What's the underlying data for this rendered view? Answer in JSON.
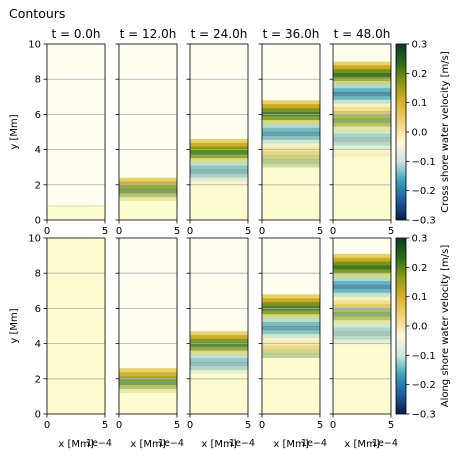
{
  "figure": {
    "title": "Contours",
    "time_prefix": "t = ",
    "time_unit": "h",
    "times": [
      "0.0",
      "12.0",
      "24.0",
      "36.0",
      "48.0"
    ],
    "x_label": "x [Mm]",
    "x_multiplier": "1e−4",
    "y_label": "y [Mm]"
  },
  "colorscale": {
    "name": "gist_earth_r-like diverging",
    "stops": [
      "#0b1e4a",
      "#1f5aa0",
      "#3aa0b8",
      "#cfe6e0",
      "#fbf7da",
      "#f2d276",
      "#d9b12a",
      "#8a9a10",
      "#2f6b1e",
      "#0b3b22"
    ],
    "ticks": [
      -0.3,
      -0.2,
      -0.1,
      0.0,
      0.1,
      0.2,
      0.3
    ],
    "tick_labels": [
      "−0.3",
      "−0.2",
      "−0.1",
      "0.0",
      "0.1",
      "0.2",
      "0.3"
    ]
  },
  "chart_data": [
    {
      "type": "heatmap",
      "row": "cross-shore",
      "colorbar_label": "Cross shore water velocity [m/s]",
      "xlim": [
        0,
        5
      ],
      "ylim": [
        0,
        10
      ],
      "x_ticks": [
        "0",
        "5"
      ],
      "y_ticks": [
        "0",
        "2",
        "4",
        "6",
        "8",
        "10"
      ],
      "grid": true,
      "panels": [
        {
          "time": "0.0",
          "front_y": 0.8,
          "band_start": 0.0,
          "band_end": 0.0
        },
        {
          "time": "12.0",
          "front_y": 2.4,
          "band_start": 1.1,
          "band_end": 2.4
        },
        {
          "time": "24.0",
          "front_y": 4.6,
          "band_start": 2.0,
          "band_end": 4.6
        },
        {
          "time": "36.0",
          "front_y": 6.8,
          "band_start": 3.0,
          "band_end": 6.8
        },
        {
          "time": "48.0",
          "front_y": 9.0,
          "band_start": 3.6,
          "band_end": 9.0
        }
      ]
    },
    {
      "type": "heatmap",
      "row": "along-shore",
      "colorbar_label": "Along shore water velocity [m/s]",
      "xlim": [
        0,
        5
      ],
      "ylim": [
        0,
        10
      ],
      "x_ticks": [
        "0",
        "5"
      ],
      "y_ticks": [
        "0",
        "2",
        "4",
        "6",
        "8",
        "10"
      ],
      "grid": true,
      "panels": [
        {
          "time": "0.0",
          "front_y": 0.0,
          "band_start": 0.0,
          "band_end": 0.0
        },
        {
          "time": "12.0",
          "front_y": 2.6,
          "band_start": 1.2,
          "band_end": 2.6
        },
        {
          "time": "24.0",
          "front_y": 4.7,
          "band_start": 2.3,
          "band_end": 4.7
        },
        {
          "time": "36.0",
          "front_y": 6.8,
          "band_start": 3.2,
          "band_end": 6.8
        },
        {
          "time": "48.0",
          "front_y": 9.1,
          "band_start": 3.8,
          "band_end": 9.1
        }
      ]
    }
  ]
}
